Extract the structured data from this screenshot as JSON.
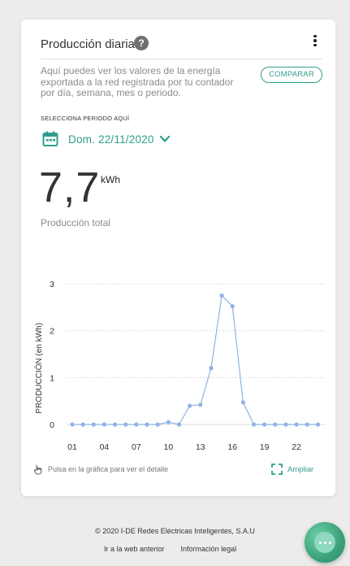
{
  "card": {
    "title": "Producción diaria",
    "help_icon": "?",
    "description": "Aquí puedes ver los valores de la energía exportada a la red registrada por tu contador por día, semana, mes o periodo.",
    "compare_label": "COMPARAR",
    "period_label": "SELECCIONA PERIODO AQUÍ",
    "date_label": "Dom. 22/11/2020",
    "value": "7,7",
    "unit": "kWh",
    "total_label": "Producción total",
    "hint": "Pulsa en la gráfica para ver el detalle",
    "expand_label": "Ampliar"
  },
  "colors": {
    "accent": "#2e9e8a",
    "series": "#8fb3e3",
    "fab": "#3aa07a"
  },
  "icons": {
    "help": "help-circle-icon",
    "menu": "more-vert-icon",
    "calendar": "calendar-icon",
    "chevron": "chevron-down-icon",
    "hand": "touch-hand-icon",
    "expand": "fullscreen-icon",
    "fab": "chat-icon"
  },
  "chart_data": {
    "type": "line",
    "x": [
      1,
      2,
      3,
      4,
      5,
      6,
      7,
      8,
      9,
      10,
      11,
      12,
      13,
      14,
      15,
      16,
      17,
      18,
      19,
      20,
      21,
      22,
      23,
      24
    ],
    "xticks": [
      "01",
      "04",
      "07",
      "10",
      "13",
      "16",
      "19",
      "22"
    ],
    "xtick_values": [
      1,
      4,
      7,
      10,
      13,
      16,
      19,
      22
    ],
    "values": [
      0.0,
      0.0,
      0.0,
      0.0,
      0.0,
      0.0,
      0.0,
      0.0,
      0.0,
      0.05,
      0.0,
      0.4,
      0.42,
      1.2,
      2.75,
      2.52,
      0.47,
      0.0,
      0.0,
      0.0,
      0.0,
      0.0,
      0.0,
      0.0
    ],
    "ylabel": "PRODUCCIÓN (en kWh)",
    "yticks": [
      0,
      1,
      2,
      3
    ],
    "ylim": [
      0,
      3
    ],
    "grid": true
  },
  "footer": {
    "copyright": "© 2020 I-DE Redes Eléctricas Inteligentes, S.A.U",
    "link_back": "Ir a la web anterior",
    "link_legal": "Información legal"
  }
}
